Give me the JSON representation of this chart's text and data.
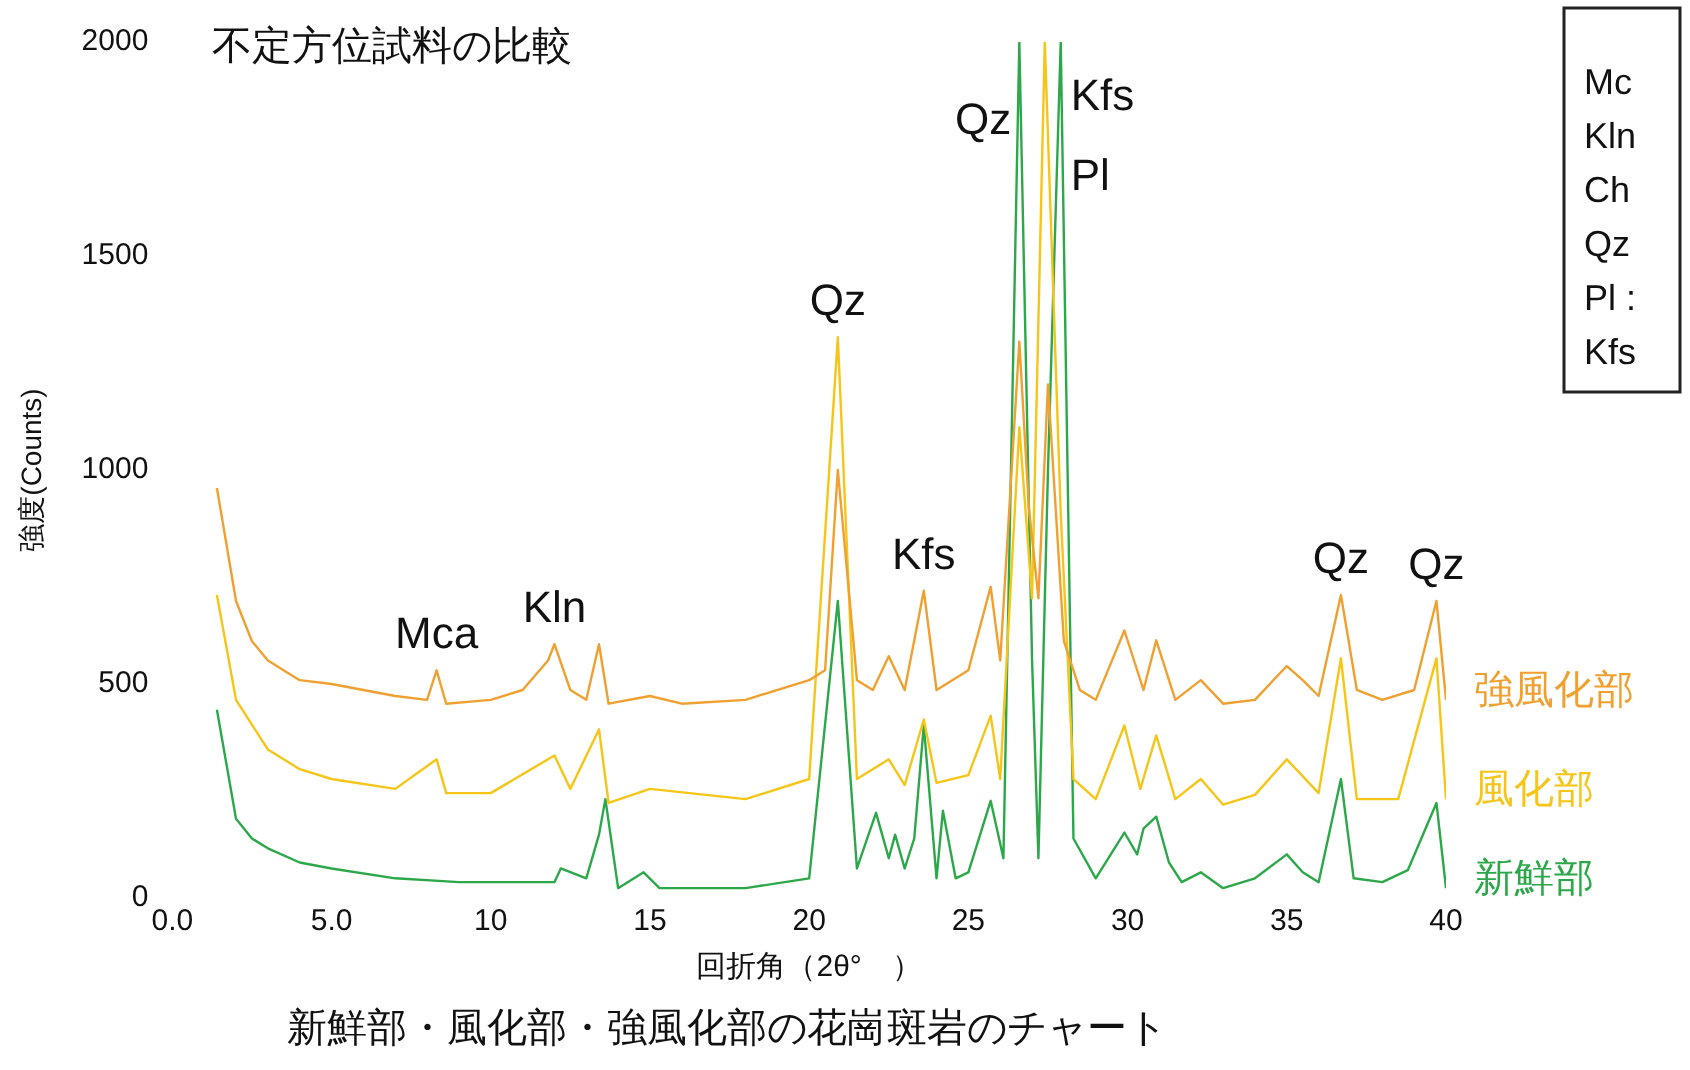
{
  "chart_data": {
    "type": "line",
    "title": "新鮮部・風化部・強風化部の花崗斑岩のチャート",
    "subtitle": "不定方位試料の比較",
    "xlabel": "回折角（2θ°　）",
    "ylabel": "強度(Counts)",
    "xlim": [
      0,
      40
    ],
    "xticks": [
      {
        "value": 0,
        "label": "0.0"
      },
      {
        "value": 5,
        "label": "5.0"
      },
      10,
      15,
      20,
      25,
      30,
      35,
      40
    ],
    "ylim": [
      0,
      2000
    ],
    "yticks": [
      0,
      500,
      1000,
      1500,
      2000
    ],
    "grid": false,
    "legend": "right",
    "marker": "none",
    "line_style": "solid",
    "series": [
      {
        "name": "強風化部",
        "color": "#f0a030",
        "x": [
          1.4,
          2,
          2.5,
          3,
          4,
          5,
          6,
          7,
          8,
          8.3,
          8.6,
          10,
          11,
          11.8,
          12,
          12.5,
          13,
          13.4,
          13.7,
          15,
          16,
          18,
          20,
          20.5,
          20.9,
          21.5,
          22,
          22.5,
          23,
          23.6,
          24,
          25,
          25.7,
          26,
          26.6,
          26.9,
          27.2,
          27.5,
          28,
          28.5,
          29,
          29.9,
          30.5,
          30.9,
          31.5,
          32.3,
          33,
          34,
          35,
          35.5,
          36,
          36.7,
          37.2,
          38,
          39,
          39.7,
          40
        ],
        "values": [
          958,
          694,
          600,
          555,
          509,
          500,
          486,
          472,
          463,
          532,
          454,
          463,
          486,
          555,
          593,
          486,
          463,
          593,
          454,
          472,
          454,
          463,
          509,
          532,
          1000,
          509,
          486,
          565,
          486,
          718,
          486,
          532,
          727,
          555,
          1300,
          912,
          700,
          1200,
          600,
          486,
          463,
          625,
          486,
          602,
          463,
          509,
          454,
          463,
          542,
          509,
          472,
          708,
          486,
          463,
          486,
          694,
          463
        ]
      },
      {
        "name": "風化部",
        "color": "#f5c518",
        "x": [
          1.4,
          2,
          3,
          4,
          5,
          7,
          8.3,
          8.6,
          10,
          12,
          12.5,
          13.4,
          13.7,
          15,
          18,
          20,
          20.9,
          21.5,
          22.5,
          23,
          23.6,
          24,
          25,
          25.7,
          26,
          26.6,
          27,
          27.4,
          27.9,
          28.3,
          29,
          29.9,
          30.4,
          30.9,
          31.5,
          32.3,
          33,
          34,
          35,
          36,
          36.7,
          37.2,
          38.5,
          39.7,
          40
        ],
        "values": [
          708,
          463,
          347,
          301,
          278,
          255,
          324,
          245,
          245,
          333,
          255,
          394,
          222,
          255,
          231,
          278,
          1310,
          278,
          324,
          264,
          417,
          269,
          287,
          426,
          278,
          1100,
          700,
          2000,
          900,
          278,
          231,
          403,
          255,
          380,
          231,
          278,
          218,
          241,
          324,
          245,
          560,
          231,
          231,
          560,
          231
        ]
      },
      {
        "name": "新鮮部",
        "color": "#2ca84a",
        "x": [
          1.4,
          2,
          2.5,
          3,
          4,
          5,
          7,
          9,
          12,
          12.2,
          13,
          13.4,
          13.6,
          14,
          14.8,
          15.3,
          18,
          20,
          20.9,
          21.5,
          22.1,
          22.5,
          22.7,
          23,
          23.3,
          23.6,
          24,
          24.2,
          24.6,
          25,
          25.7,
          26.1,
          26.6,
          27,
          27.2,
          27.5,
          27.9,
          28.3,
          29,
          29.9,
          30.3,
          30.5,
          30.9,
          31.3,
          31.7,
          32.3,
          33,
          34,
          35,
          35.5,
          36,
          36.7,
          37.1,
          38,
          38.8,
          39.7,
          40
        ],
        "values": [
          440,
          185,
          139,
          116,
          83,
          69,
          46,
          37,
          37,
          69,
          46,
          148,
          231,
          23,
          60,
          23,
          23,
          46,
          694,
          69,
          199,
          93,
          148,
          69,
          139,
          403,
          46,
          204,
          46,
          60,
          227,
          93,
          2000,
          556,
          93,
          1000,
          2000,
          139,
          46,
          153,
          102,
          162,
          190,
          83,
          37,
          60,
          23,
          46,
          102,
          60,
          37,
          278,
          46,
          37,
          65,
          222,
          23
        ]
      }
    ],
    "annotations": [
      {
        "text": "Mca",
        "x": 8.3,
        "y": 532
      },
      {
        "text": "Kln",
        "x": 12,
        "y": 593
      },
      {
        "text": "Qz",
        "x": 20.9,
        "y": 1310
      },
      {
        "text": "Kfs",
        "x": 23.6,
        "y": 718
      },
      {
        "text": "Qz",
        "x": 26.6,
        "y": 2000
      },
      {
        "text": "Pl",
        "x": 27.4,
        "y": 2000
      },
      {
        "text": "Kfs",
        "x": 27.9,
        "y": 2000
      },
      {
        "text": "Qz",
        "x": 36.7,
        "y": 708
      },
      {
        "text": "Qz",
        "x": 39.7,
        "y": 694
      },
      "Mc",
      "Kln",
      "Ch",
      "Qz",
      "Pl :",
      "Kfs"
    ]
  }
}
